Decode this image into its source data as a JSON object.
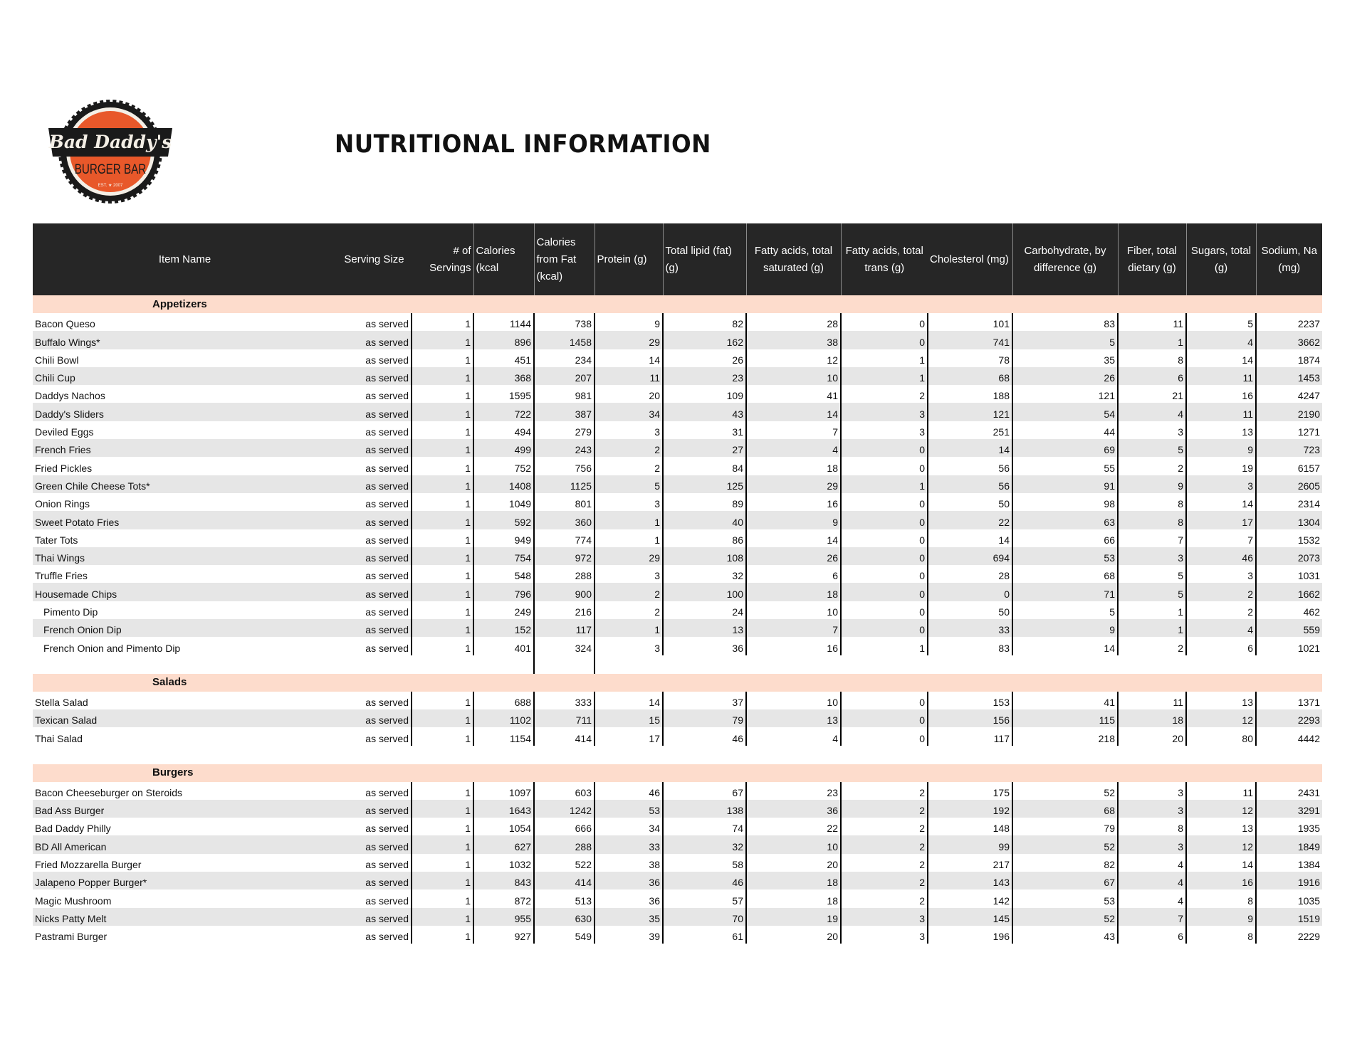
{
  "header": {
    "title": "NUTRITIONAL INFORMATION",
    "logo": {
      "line1": "Bad Daddy's",
      "line2": "BURGER BAR",
      "est": "EST. ★ 2007"
    }
  },
  "colors": {
    "header_bg": "#262626",
    "section_band": "#fddccc",
    "alt_row": "#e6e6e6",
    "logo_orange": "#e8582a"
  },
  "columns": [
    "Item Name",
    "Serving Size",
    "# of Servings",
    "Calories (kcal",
    "Calories from Fat (kcal)",
    "Protein (g)",
    "Total lipid (fat) (g)",
    "Fatty acids, total saturated (g)",
    "Fatty acids, total trans (g)",
    "Cholesterol (mg)",
    "Carbohydrate, by difference (g)",
    "Fiber, total dietary (g)",
    "Sugars, total (g)",
    "Sodium, Na (mg)"
  ],
  "sections": [
    {
      "title": "Appetizers",
      "rows": [
        [
          "Bacon Queso",
          "as served",
          "1",
          "1144",
          "738",
          "9",
          "82",
          "28",
          "0",
          "101",
          "83",
          "11",
          "5",
          "2237"
        ],
        [
          "Buffalo Wings*",
          "as served",
          "1",
          "896",
          "1458",
          "29",
          "162",
          "38",
          "0",
          "741",
          "5",
          "1",
          "4",
          "3662"
        ],
        [
          "Chili Bowl",
          "as served",
          "1",
          "451",
          "234",
          "14",
          "26",
          "12",
          "1",
          "78",
          "35",
          "8",
          "14",
          "1874"
        ],
        [
          "Chili Cup",
          "as served",
          "1",
          "368",
          "207",
          "11",
          "23",
          "10",
          "1",
          "68",
          "26",
          "6",
          "11",
          "1453"
        ],
        [
          "Daddys Nachos",
          "as served",
          "1",
          "1595",
          "981",
          "20",
          "109",
          "41",
          "2",
          "188",
          "121",
          "21",
          "16",
          "4247"
        ],
        [
          "Daddy's Sliders",
          "as served",
          "1",
          "722",
          "387",
          "34",
          "43",
          "14",
          "3",
          "121",
          "54",
          "4",
          "11",
          "2190"
        ],
        [
          "Deviled Eggs",
          "as served",
          "1",
          "494",
          "279",
          "3",
          "31",
          "7",
          "3",
          "251",
          "44",
          "3",
          "13",
          "1271"
        ],
        [
          "French Fries",
          "as served",
          "1",
          "499",
          "243",
          "2",
          "27",
          "4",
          "0",
          "14",
          "69",
          "5",
          "9",
          "723"
        ],
        [
          "Fried Pickles",
          "as served",
          "1",
          "752",
          "756",
          "2",
          "84",
          "18",
          "0",
          "56",
          "55",
          "2",
          "19",
          "6157"
        ],
        [
          "Green Chile Cheese Tots*",
          "as served",
          "1",
          "1408",
          "1125",
          "5",
          "125",
          "29",
          "1",
          "56",
          "91",
          "9",
          "3",
          "2605"
        ],
        [
          "Onion Rings",
          "as served",
          "1",
          "1049",
          "801",
          "3",
          "89",
          "16",
          "0",
          "50",
          "98",
          "8",
          "14",
          "2314"
        ],
        [
          "Sweet Potato Fries",
          "as served",
          "1",
          "592",
          "360",
          "1",
          "40",
          "9",
          "0",
          "22",
          "63",
          "8",
          "17",
          "1304"
        ],
        [
          "Tater Tots",
          "as served",
          "1",
          "949",
          "774",
          "1",
          "86",
          "14",
          "0",
          "14",
          "66",
          "7",
          "7",
          "1532"
        ],
        [
          "Thai Wings",
          "as served",
          "1",
          "754",
          "972",
          "29",
          "108",
          "26",
          "0",
          "694",
          "53",
          "3",
          "46",
          "2073"
        ],
        [
          "Truffle Fries",
          "as served",
          "1",
          "548",
          "288",
          "3",
          "32",
          "6",
          "0",
          "28",
          "68",
          "5",
          "3",
          "1031"
        ],
        [
          "Housemade Chips",
          "as served",
          "1",
          "796",
          "900",
          "2",
          "100",
          "18",
          "0",
          "0",
          "71",
          "5",
          "2",
          "1662"
        ],
        [
          "Pimento Dip",
          "as served",
          "1",
          "249",
          "216",
          "2",
          "24",
          "10",
          "0",
          "50",
          "5",
          "1",
          "2",
          "462"
        ],
        [
          "French Onion Dip",
          "as served",
          "1",
          "152",
          "117",
          "1",
          "13",
          "7",
          "0",
          "33",
          "9",
          "1",
          "4",
          "559"
        ],
        [
          "French Onion and Pimento Dip",
          "as served",
          "1",
          "401",
          "324",
          "3",
          "36",
          "16",
          "1",
          "83",
          "14",
          "2",
          "6",
          "1021"
        ]
      ],
      "sub_items": [
        "Pimento Dip",
        "French Onion Dip",
        "French Onion and Pimento Dip"
      ]
    },
    {
      "title": "Salads",
      "rows": [
        [
          "Stella Salad",
          "as served",
          "1",
          "688",
          "333",
          "14",
          "37",
          "10",
          "0",
          "153",
          "41",
          "11",
          "13",
          "1371"
        ],
        [
          "Texican Salad",
          "as served",
          "1",
          "1102",
          "711",
          "15",
          "79",
          "13",
          "0",
          "156",
          "115",
          "18",
          "12",
          "2293"
        ],
        [
          "Thai Salad",
          "as served",
          "1",
          "1154",
          "414",
          "17",
          "46",
          "4",
          "0",
          "117",
          "218",
          "20",
          "80",
          "4442"
        ]
      ],
      "sub_items": []
    },
    {
      "title": "Burgers",
      "rows": [
        [
          "Bacon Cheeseburger on Steroids",
          "as served",
          "1",
          "1097",
          "603",
          "46",
          "67",
          "23",
          "2",
          "175",
          "52",
          "3",
          "11",
          "2431"
        ],
        [
          "Bad Ass Burger",
          "as served",
          "1",
          "1643",
          "1242",
          "53",
          "138",
          "36",
          "2",
          "192",
          "68",
          "3",
          "12",
          "3291"
        ],
        [
          "Bad Daddy Philly",
          "as served",
          "1",
          "1054",
          "666",
          "34",
          "74",
          "22",
          "2",
          "148",
          "79",
          "8",
          "13",
          "1935"
        ],
        [
          "BD All American",
          "as served",
          "1",
          "627",
          "288",
          "33",
          "32",
          "10",
          "2",
          "99",
          "52",
          "3",
          "12",
          "1849"
        ],
        [
          "Fried Mozzarella Burger",
          "as served",
          "1",
          "1032",
          "522",
          "38",
          "58",
          "20",
          "2",
          "217",
          "82",
          "4",
          "14",
          "1384"
        ],
        [
          "Jalapeno Popper Burger*",
          "as served",
          "1",
          "843",
          "414",
          "36",
          "46",
          "18",
          "2",
          "143",
          "67",
          "4",
          "16",
          "1916"
        ],
        [
          "Magic Mushroom",
          "as served",
          "1",
          "872",
          "513",
          "36",
          "57",
          "18",
          "2",
          "142",
          "53",
          "4",
          "8",
          "1035"
        ],
        [
          "Nicks Patty Melt",
          "as served",
          "1",
          "955",
          "630",
          "35",
          "70",
          "19",
          "3",
          "145",
          "52",
          "7",
          "9",
          "1519"
        ],
        [
          "Pastrami Burger",
          "as served",
          "1",
          "927",
          "549",
          "39",
          "61",
          "20",
          "3",
          "196",
          "43",
          "6",
          "8",
          "2229"
        ]
      ],
      "sub_items": []
    }
  ]
}
